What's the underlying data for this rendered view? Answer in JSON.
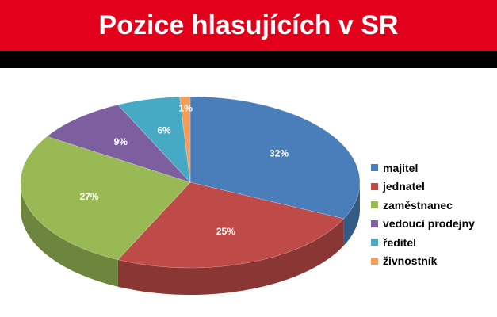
{
  "header": {
    "title": "Pozice hlasujících v SR"
  },
  "chart_data": {
    "type": "pie",
    "three_d": true,
    "title": "Pozice hlasujících v SR",
    "legend_position": "right",
    "data_label_suffix": "%",
    "slices": [
      {
        "label": "majitel",
        "value": 32,
        "color": "#4a7ebb"
      },
      {
        "label": "jednatel",
        "value": 25,
        "color": "#be4b48"
      },
      {
        "label": "zaměstnanec",
        "value": 27,
        "color": "#98b954"
      },
      {
        "label": "vedoucí prodejny",
        "value": 9,
        "color": "#7d5fa0"
      },
      {
        "label": "ředitel",
        "value": 6,
        "color": "#46aac5"
      },
      {
        "label": "živnostník",
        "value": 1,
        "color": "#f59d56"
      }
    ]
  }
}
